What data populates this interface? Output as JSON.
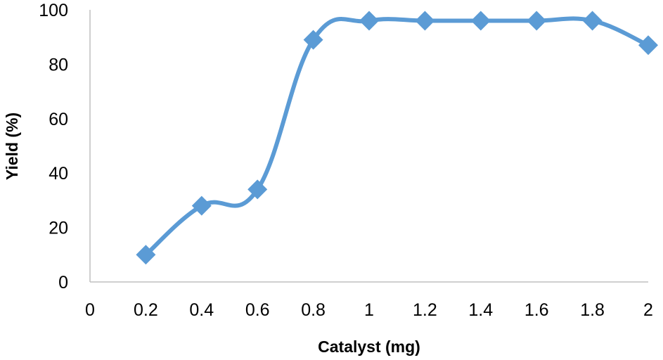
{
  "chart_data": {
    "type": "line",
    "xlabel": "Catalyst (mg)",
    "ylabel": "Yield (%)",
    "xlim": [
      0,
      2
    ],
    "ylim": [
      0,
      100
    ],
    "x_ticks": [
      "0",
      "0.2",
      "0.4",
      "0.6",
      "0.8",
      "1",
      "1.2",
      "1.4",
      "1.6",
      "1.8",
      "2"
    ],
    "y_ticks": [
      "0",
      "20",
      "40",
      "60",
      "80",
      "100"
    ],
    "grid": false,
    "legend": "none",
    "smoothed": true,
    "marker": "diamond",
    "color": "#5b9bd5",
    "series": [
      {
        "x": [
          0.2,
          0.4,
          0.6,
          0.8,
          1.0,
          1.2,
          1.4,
          1.6,
          1.8,
          2.0
        ],
        "y": [
          10,
          28,
          34,
          89,
          96,
          96,
          96,
          96,
          96,
          87
        ]
      }
    ]
  }
}
